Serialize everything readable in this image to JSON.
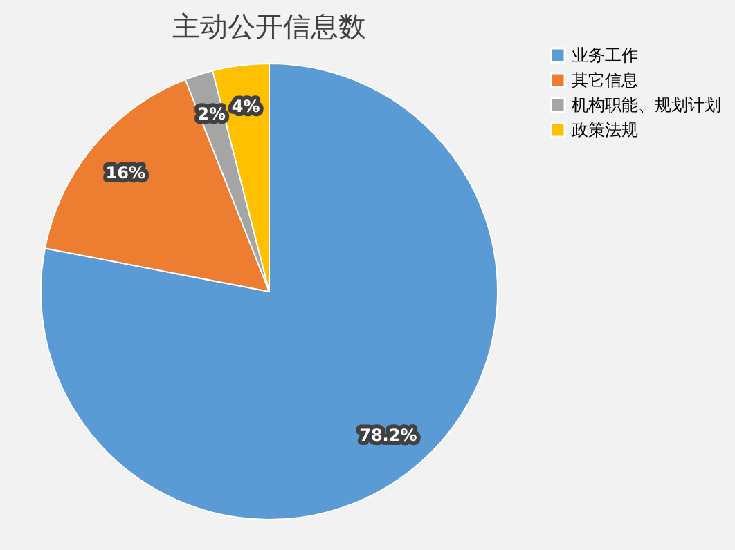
{
  "chart_data": {
    "type": "pie",
    "title": "主动公开信息数",
    "categories": [
      "业务工作",
      "其它信息",
      "机构职能、规划计划",
      "政策法规"
    ],
    "values": [
      78.2,
      16,
      2,
      4
    ],
    "colors": [
      "#5b9bd5",
      "#ed7d31",
      "#a5a5a5",
      "#ffc000"
    ],
    "value_labels": [
      "78.2%",
      "16%",
      "2%",
      "4%"
    ],
    "legend": "right"
  }
}
